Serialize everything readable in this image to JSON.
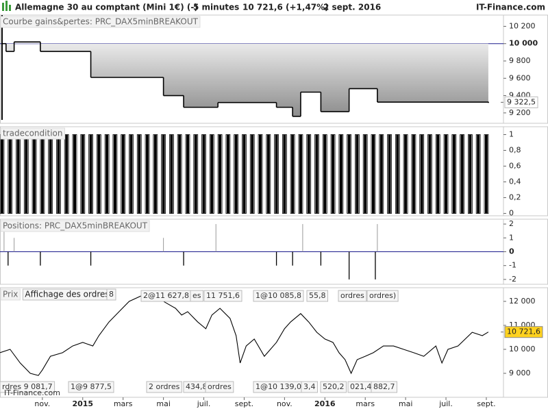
{
  "header": {
    "instrument": "Allemagne 30 au comptant (Mini 1€) (-)",
    "timeframe": "5 minutes",
    "quote": "10 721,6 (+1,47%)",
    "date": "2 sept. 2016",
    "brand": "IT-Finance.com"
  },
  "chart_data": [
    {
      "type": "step",
      "title": "Courbe gains&pertes: PRC_DAX5minBREAKOUT",
      "x": [
        -4.0,
        -3.8,
        -3.4,
        -2.1,
        0.4,
        4.0,
        5.0,
        6.7,
        9.6,
        10.4,
        10.8,
        11.8,
        13.2,
        14.6,
        20.1
      ],
      "values": [
        10000,
        9910,
        10020,
        9910,
        9610,
        9400,
        9265,
        9320,
        9265,
        9160,
        9440,
        9215,
        9480,
        9325,
        9322.5
      ],
      "color": "#000000",
      "fill_color": "#a0a0a0",
      "xlim": [
        -4.1,
        20.85
      ],
      "ylim": [
        9080,
        10330
      ],
      "yticks": [
        {
          "value": 9200,
          "label": "9 200"
        },
        {
          "value": 9400,
          "label": "9 400"
        },
        {
          "value": 9600,
          "label": "9 600"
        },
        {
          "value": 9800,
          "label": "9 800"
        },
        {
          "value": 10000,
          "label": "10 000"
        },
        {
          "value": 10200,
          "label": "10 200"
        }
      ],
      "reference_line": 10000,
      "reference_color": "#1a1a8c",
      "last_value": 9322.5,
      "last_value_label": "9 322,5"
    },
    {
      "type": "spikes",
      "title": "tradecondition",
      "x": [
        -4.0,
        -3.6,
        -3.2,
        -2.8,
        -2.4,
        -2.0,
        -1.6,
        -1.2,
        -0.8,
        -0.4,
        0.0,
        0.4,
        0.8,
        1.2,
        1.6,
        2.0,
        2.4,
        2.8,
        3.2,
        3.6,
        4.0,
        4.4,
        4.8,
        5.2,
        5.6,
        6.0,
        6.4,
        6.8,
        7.2,
        7.6,
        8.0,
        8.4,
        8.8,
        9.2,
        9.6,
        10.0,
        10.4,
        10.8,
        11.2,
        11.6,
        12.0,
        12.4,
        12.8,
        13.2,
        13.6,
        14.0,
        14.4,
        14.8,
        15.2,
        15.6,
        16.0,
        16.4,
        16.8,
        17.2,
        17.6,
        18.0,
        18.4,
        18.8,
        19.2,
        19.6,
        20.0
      ],
      "values": [
        1,
        1,
        1,
        1,
        1,
        1,
        1,
        1,
        1,
        1,
        1,
        1,
        1,
        1,
        1,
        1,
        1,
        1,
        1,
        1,
        1,
        1,
        1,
        1,
        1,
        1,
        1,
        1,
        1,
        1,
        1,
        1,
        1,
        1,
        1,
        1,
        1,
        1,
        1,
        1,
        1,
        1,
        1,
        1,
        1,
        1,
        1,
        1,
        1,
        1,
        1,
        1,
        1,
        1,
        1,
        1,
        1,
        1,
        1,
        1,
        1
      ],
      "color": "#000000",
      "xlim": [
        -4.1,
        20.85
      ],
      "ylim": [
        -0.03,
        1.1
      ],
      "yticks": [
        0,
        {
          "value": 0.2,
          "label": "0,2"
        },
        {
          "value": 0.4,
          "label": "0,4"
        },
        {
          "value": 0.6,
          "label": "0,6"
        },
        {
          "value": 0.8,
          "label": "0,8"
        },
        1
      ]
    },
    {
      "type": "signed_bars",
      "title": "Positions: PRC_DAX5minBREAKOUT",
      "x": [
        -3.9,
        -3.7,
        -3.4,
        -2.1,
        0.4,
        4.0,
        5.0,
        6.6,
        9.6,
        10.4,
        10.9,
        11.8,
        13.2,
        14.5,
        14.6
      ],
      "values": [
        2,
        -1,
        1,
        -1,
        -1,
        1,
        -1,
        2,
        -1,
        -1,
        2,
        -1,
        -2,
        -2,
        2
      ],
      "positive_color": "#999999",
      "negative_color": "#000000",
      "xlim": [
        -4.1,
        20.85
      ],
      "ylim": [
        -2.35,
        2.35
      ],
      "yticks": [
        -2,
        -1,
        0,
        1,
        2
      ],
      "reference_line": 0,
      "reference_color": "#1a1a8c"
    },
    {
      "type": "line",
      "title": "Prix",
      "x": [
        -4.1,
        -3.6,
        -3.1,
        -2.6,
        -2.2,
        -2.0,
        -1.6,
        -1.0,
        -0.5,
        0.0,
        0.5,
        0.8,
        1.3,
        1.8,
        2.3,
        2.9,
        3.2,
        3.5,
        4.0,
        4.6,
        4.9,
        5.2,
        5.7,
        6.1,
        6.4,
        6.8,
        7.3,
        7.6,
        7.8,
        8.1,
        8.5,
        9.0,
        9.3,
        9.6,
        10.0,
        10.3,
        10.8,
        11.2,
        11.6,
        12.0,
        12.4,
        12.7,
        13.0,
        13.3,
        13.6,
        14.0,
        14.4,
        14.9,
        15.4,
        15.9,
        16.4,
        16.9,
        17.5,
        17.8,
        18.1,
        18.6,
        19.3,
        19.8,
        20.1
      ],
      "values": [
        9860,
        10000,
        9430,
        9000,
        8910,
        9140,
        9710,
        9860,
        10140,
        10290,
        10140,
        10570,
        11140,
        11570,
        12000,
        12230,
        12140,
        12290,
        12000,
        11710,
        11430,
        11570,
        11140,
        10860,
        11430,
        11710,
        11290,
        10570,
        9430,
        10140,
        10430,
        9710,
        10000,
        10290,
        10860,
        11140,
        11490,
        11140,
        10710,
        10430,
        10290,
        9860,
        9570,
        9000,
        9570,
        9710,
        9860,
        10140,
        10140,
        10000,
        9860,
        9710,
        10140,
        9430,
        10000,
        10140,
        10710,
        10570,
        10721.6
      ],
      "color": "#000000",
      "xlim": [
        -4.1,
        20.85
      ],
      "ylim": [
        8000,
        12570
      ],
      "yticks": [
        {
          "value": 9000,
          "label": "9 000"
        },
        {
          "value": 10000,
          "label": "10 000"
        },
        {
          "value": 11000,
          "label": "11 000"
        },
        {
          "value": 12000,
          "label": "12 000"
        }
      ],
      "xticks": [
        {
          "value": -2,
          "label": "nov."
        },
        {
          "value": 0,
          "label": "2015"
        },
        {
          "value": 2,
          "label": "mars"
        },
        {
          "value": 4,
          "label": "mai"
        },
        {
          "value": 6,
          "label": "juil."
        },
        {
          "value": 8,
          "label": "sept."
        },
        {
          "value": 10,
          "label": "nov."
        },
        {
          "value": 12,
          "label": "2016"
        },
        {
          "value": 14,
          "label": "mars"
        },
        {
          "value": 16,
          "label": "mai"
        },
        {
          "value": 18,
          "label": "juil."
        },
        {
          "value": 20,
          "label": "sept."
        }
      ],
      "last_value": 10721.6,
      "last_value_label": "10 721,6",
      "last_value_color": "#ffd21f",
      "legend_button": "Affichage des ordres",
      "order_labels": [
        "8",
        "2@11 627,8",
        "es",
        "11 751,6",
        "1@10 085,8",
        "55,8",
        "ordres",
        "ordres)",
        "rdres 9 081,7",
        "1@9 877,5",
        "2 ordres",
        "434,8",
        "ordres",
        "1@10 139,0",
        "3,4",
        "520,2",
        "021,4",
        "882,7"
      ],
      "watermark": "IT-Finance.com"
    }
  ]
}
